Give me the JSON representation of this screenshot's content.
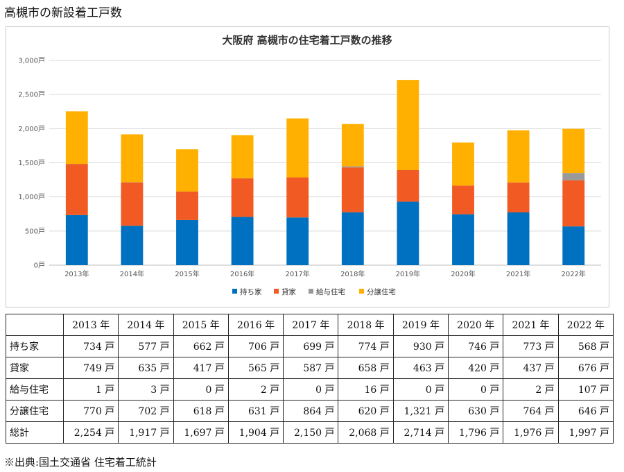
{
  "page_title": "高槻市の新設着工戸数",
  "source_note": "※出典:国土交通省 住宅着工統計",
  "colors": {
    "持ち家": "#0070c0",
    "貸家": "#f15a22",
    "給与住宅": "#999999",
    "分譲住宅": "#ffb000"
  },
  "chart_data": {
    "type": "bar",
    "stacked": true,
    "title": "大阪府 高槻市の住宅着工戸数の推移",
    "categories": [
      "2013年",
      "2014年",
      "2015年",
      "2016年",
      "2017年",
      "2018年",
      "2019年",
      "2020年",
      "2021年",
      "2022年"
    ],
    "series": [
      {
        "name": "持ち家",
        "values": [
          734,
          577,
          662,
          706,
          699,
          774,
          930,
          746,
          773,
          568
        ]
      },
      {
        "name": "貸家",
        "values": [
          749,
          635,
          417,
          565,
          587,
          658,
          463,
          420,
          437,
          676
        ]
      },
      {
        "name": "給与住宅",
        "values": [
          1,
          3,
          0,
          2,
          0,
          16,
          0,
          0,
          2,
          107
        ]
      },
      {
        "name": "分譲住宅",
        "values": [
          770,
          702,
          618,
          631,
          864,
          620,
          1321,
          630,
          764,
          646
        ]
      }
    ],
    "ylim": [
      0,
      3000
    ],
    "yticks": [
      "0戸",
      "500戸",
      "1,000戸",
      "1,500戸",
      "2,000戸",
      "2,500戸",
      "3,000戸"
    ],
    "ytick_values": [
      0,
      500,
      1000,
      1500,
      2000,
      2500,
      3000
    ],
    "grid": true,
    "legend": "bottom"
  },
  "table": {
    "header": [
      "",
      "2013 年",
      "2014 年",
      "2015 年",
      "2016 年",
      "2017 年",
      "2018 年",
      "2019 年",
      "2020 年",
      "2021 年",
      "2022 年"
    ],
    "rows": [
      {
        "label": "持ち家",
        "cells": [
          "734 戸",
          "577 戸",
          "662 戸",
          "706 戸",
          "699 戸",
          "774 戸",
          "930 戸",
          "746 戸",
          "773 戸",
          "568 戸"
        ]
      },
      {
        "label": "貸家",
        "cells": [
          "749 戸",
          "635 戸",
          "417 戸",
          "565 戸",
          "587 戸",
          "658 戸",
          "463 戸",
          "420 戸",
          "437 戸",
          "676 戸"
        ]
      },
      {
        "label": "給与住宅",
        "cells": [
          "1 戸",
          "3 戸",
          "0 戸",
          "2 戸",
          "0 戸",
          "16 戸",
          "0 戸",
          "0 戸",
          "2 戸",
          "107 戸"
        ]
      },
      {
        "label": "分譲住宅",
        "cells": [
          "770 戸",
          "702 戸",
          "618 戸",
          "631 戸",
          "864 戸",
          "620 戸",
          "1,321 戸",
          "630 戸",
          "764 戸",
          "646 戸"
        ]
      },
      {
        "label": "総計",
        "cells": [
          "2,254 戸",
          "1,917 戸",
          "1,697 戸",
          "1,904 戸",
          "2,150 戸",
          "2,068 戸",
          "2,714 戸",
          "1,796 戸",
          "1,976 戸",
          "1,997 戸"
        ]
      }
    ]
  }
}
